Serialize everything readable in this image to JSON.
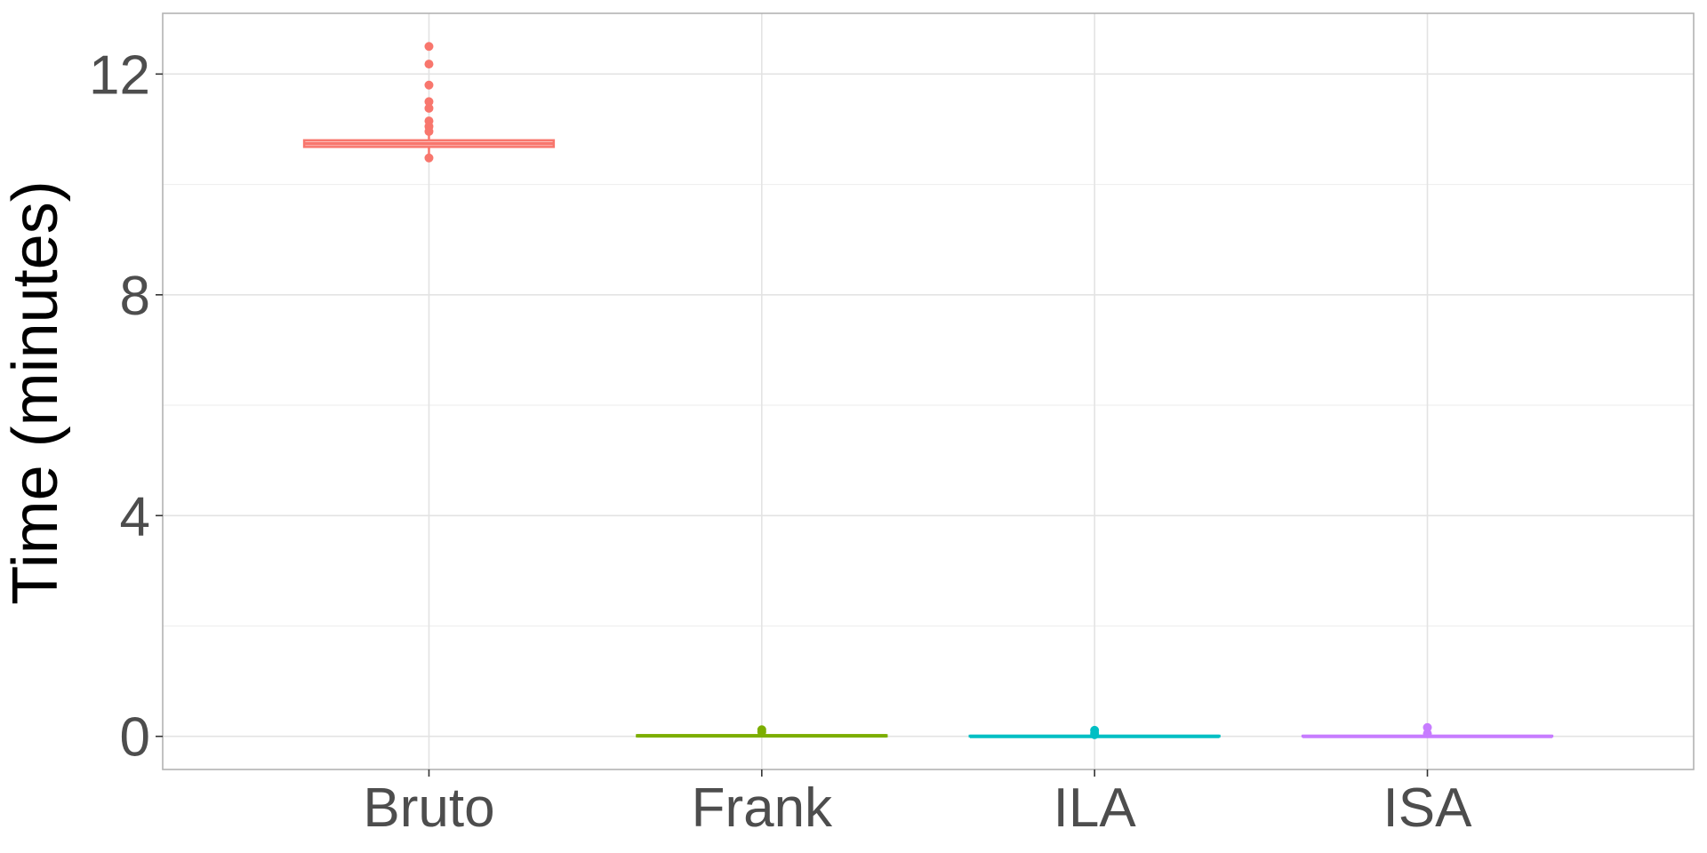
{
  "chart_data": {
    "type": "box",
    "ylabel": "Time (minutes)",
    "xlabel": "",
    "categories": [
      "Bruto",
      "Frank",
      "ILA",
      "ISA"
    ],
    "ylim": [
      -0.6,
      13.1
    ],
    "yticks": [
      0,
      4,
      8,
      12
    ],
    "yticks_minor": [
      2,
      6,
      10
    ],
    "grid": true,
    "legend": "none",
    "series": [
      {
        "category": "Bruto",
        "color": "#F8766D",
        "q1": 10.68,
        "median": 10.74,
        "q3": 10.8,
        "whisker_low": 10.55,
        "whisker_high": 10.92,
        "outliers": [
          12.5,
          12.18,
          11.8,
          11.5,
          11.38,
          11.15,
          11.05,
          10.96,
          10.48
        ]
      },
      {
        "category": "Frank",
        "color": "#7CAE00",
        "q1": 0.0,
        "median": 0.01,
        "q3": 0.02,
        "whisker_low": 0.0,
        "whisker_high": 0.03,
        "outliers": [
          0.12,
          0.08
        ]
      },
      {
        "category": "ILA",
        "color": "#00BFC4",
        "q1": 0.0,
        "median": 0.0,
        "q3": 0.01,
        "whisker_low": 0.0,
        "whisker_high": 0.02,
        "outliers": [
          0.11,
          0.06,
          0.03
        ]
      },
      {
        "category": "ISA",
        "color": "#C77CFF",
        "q1": 0.0,
        "median": 0.0,
        "q3": 0.01,
        "whisker_low": 0.0,
        "whisker_high": 0.02,
        "outliers": [
          0.16,
          0.05
        ]
      }
    ]
  }
}
